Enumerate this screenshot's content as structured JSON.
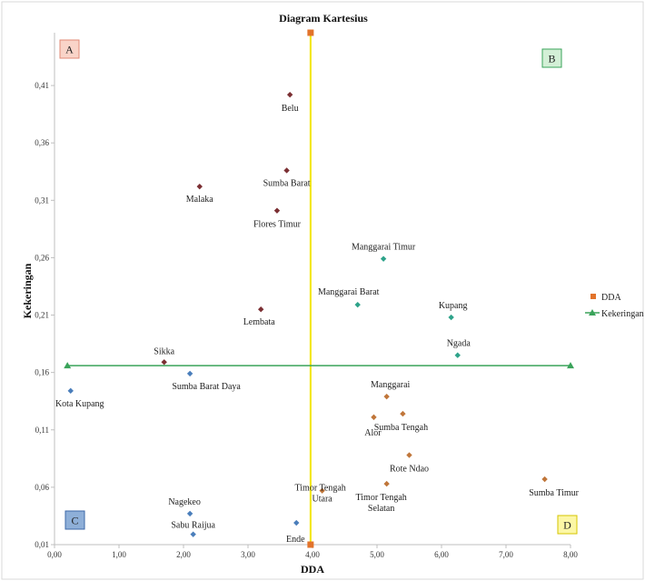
{
  "chart_data": {
    "type": "scatter",
    "title": "Diagram Kartesius",
    "xlabel": "DDA",
    "ylabel": "Kekeringan",
    "xlim": [
      0,
      8
    ],
    "ylim": [
      0.01,
      0.456
    ],
    "xticks": [
      "0,00",
      "1,00",
      "2,00",
      "3,00",
      "4,00",
      "5,00",
      "6,00",
      "7,00",
      "8,00"
    ],
    "yticks": [
      "0,01",
      "0,06",
      "0,11",
      "0,16",
      "0,21",
      "0,26",
      "0,31",
      "0,36",
      "0,41"
    ],
    "legend": {
      "position": "right",
      "entries": [
        {
          "label": "DDA",
          "color": "#e2732b",
          "marker": "square"
        },
        {
          "label": "Kekeringan",
          "color": "#3aa35a",
          "marker": "triangle-line"
        }
      ]
    },
    "reference_lines": {
      "vertical": {
        "name": "DDA",
        "x": 3.97,
        "y_from": 0.01,
        "y_to": 0.456,
        "color": "#f2e600",
        "marker_color": "#e2732b"
      },
      "horizontal": {
        "name": "Kekeringan",
        "y": 0.166,
        "x_from": 0.2,
        "x_to": 8.0,
        "color": "#3aa35a"
      }
    },
    "quadrants": [
      {
        "label": "A",
        "fill": "#f9d4c8",
        "stroke": "#e08a76",
        "position": "top-left"
      },
      {
        "label": "B",
        "fill": "#d3efd6",
        "stroke": "#3aa35a",
        "position": "top-right"
      },
      {
        "label": "C",
        "fill": "#8eafd8",
        "stroke": "#3e69a8",
        "position": "bottom-left"
      },
      {
        "label": "D",
        "fill": "#fcf7a6",
        "stroke": "#d6c400",
        "position": "bottom-right"
      }
    ],
    "series": [
      {
        "color": "#7b2f33",
        "points": [
          {
            "label": "Belu",
            "x": 3.65,
            "y": 0.402
          },
          {
            "label": "Sumba Barat",
            "x": 3.6,
            "y": 0.336
          },
          {
            "label": "Malaka",
            "x": 2.25,
            "y": 0.322
          },
          {
            "label": "Flores Timur",
            "x": 3.45,
            "y": 0.301
          },
          {
            "label": "Lembata",
            "x": 3.2,
            "y": 0.215
          },
          {
            "label": "Sikka",
            "x": 1.7,
            "y": 0.169
          }
        ]
      },
      {
        "color": "#2ea38a",
        "points": [
          {
            "label": "Manggarai Timur",
            "x": 5.1,
            "y": 0.259
          },
          {
            "label": "Manggarai Barat",
            "x": 4.7,
            "y": 0.219
          },
          {
            "label": "Kupang",
            "x": 6.15,
            "y": 0.208
          },
          {
            "label": "Ngada",
            "x": 6.25,
            "y": 0.175
          }
        ]
      },
      {
        "color": "#4a7ebb",
        "points": [
          {
            "label": "Sumba Barat Daya",
            "x": 2.1,
            "y": 0.159
          },
          {
            "label": "Kota Kupang",
            "x": 0.25,
            "y": 0.144
          },
          {
            "label": "Nagekeo",
            "x": 2.1,
            "y": 0.037
          },
          {
            "label": "Sabu Raijua",
            "x": 2.15,
            "y": 0.019
          },
          {
            "label": "Ende",
            "x": 3.75,
            "y": 0.029
          }
        ]
      },
      {
        "color": "#c0763a",
        "points": [
          {
            "label": "Manggarai",
            "x": 5.15,
            "y": 0.139
          },
          {
            "label": "Alor",
            "x": 4.95,
            "y": 0.121
          },
          {
            "label": "Sumba Tengah",
            "x": 5.4,
            "y": 0.124
          },
          {
            "label": "Rote Ndao",
            "x": 5.5,
            "y": 0.088
          },
          {
            "label": "Timor Tengah Selatan",
            "x": 5.15,
            "y": 0.063
          },
          {
            "label": "Timor Tengah Utara",
            "x": 4.15,
            "y": 0.057
          },
          {
            "label": "Sumba Timur",
            "x": 7.6,
            "y": 0.067
          }
        ]
      }
    ]
  }
}
